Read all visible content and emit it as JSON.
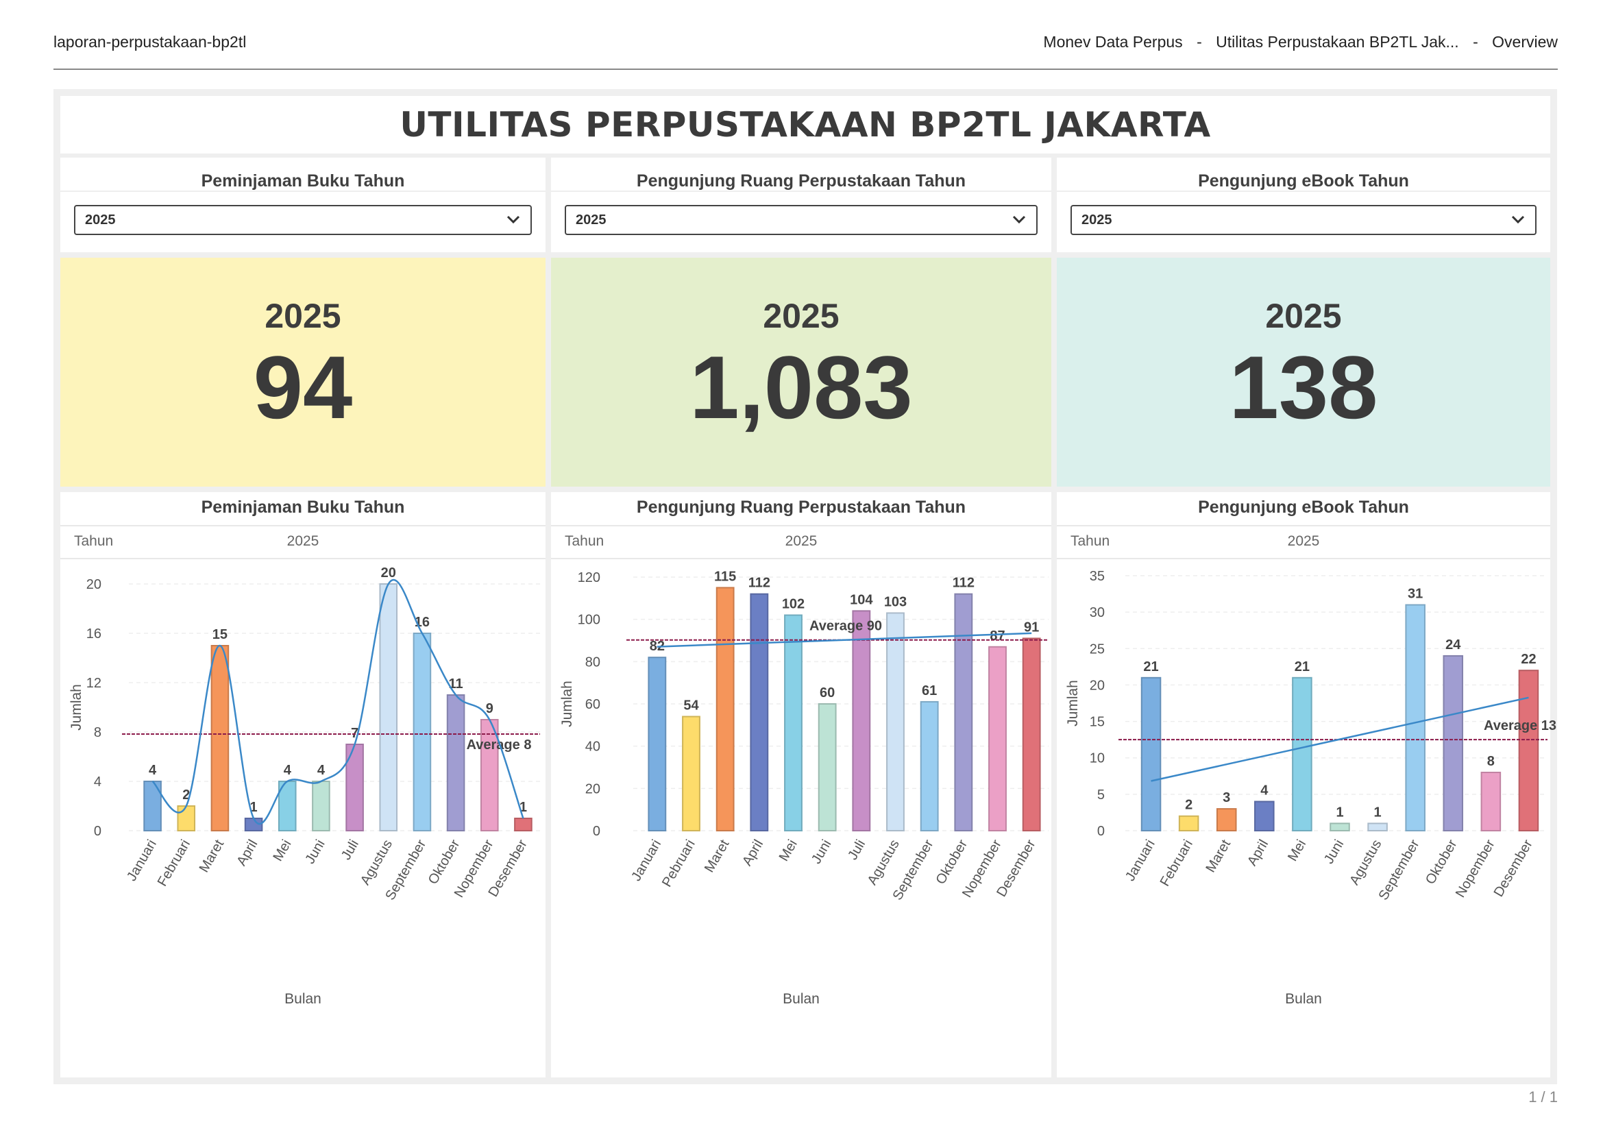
{
  "header": {
    "doc_name": "laporan-perpustakaan-bp2tl",
    "crumbs": [
      "Monev Data Perpus",
      "-",
      "Utilitas Perpustakaan BP2TL Jak...",
      "-",
      "Overview"
    ]
  },
  "title": "UTILITAS PERPUSTAKAAN BP2TL JAKARTA",
  "filters": [
    {
      "title": "Peminjaman Buku Tahun",
      "value": "2025"
    },
    {
      "title": "Pengunjung Ruang Perpustakaan Tahun",
      "value": "2025"
    },
    {
      "title": "Pengunjung eBook Tahun",
      "value": "2025"
    }
  ],
  "kpis": [
    {
      "year": "2025",
      "value": "94",
      "bg": "#fdf4bb"
    },
    {
      "year": "2025",
      "value": "1,083",
      "bg": "#e4efcc"
    },
    {
      "year": "2025",
      "value": "138",
      "bg": "#daf0ec"
    }
  ],
  "charts": [
    {
      "title": "Peminjaman Buku Tahun",
      "tahun_label": "Tahun",
      "tahun_value": "2025"
    },
    {
      "title": "Pengunjung Ruang Perpustakaan Tahun",
      "tahun_label": "Tahun",
      "tahun_value": "2025"
    },
    {
      "title": "Pengunjung eBook Tahun",
      "tahun_label": "Tahun",
      "tahun_value": "2025"
    }
  ],
  "chart_data": [
    {
      "type": "bar",
      "title": "Peminjaman Buku Tahun",
      "xlabel": "Bulan",
      "ylabel": "Jumlah",
      "categories": [
        "Januari",
        "Februari",
        "Maret",
        "April",
        "Mei",
        "Juni",
        "Juli",
        "Agustus",
        "September",
        "Oktober",
        "Nopember",
        "Desember"
      ],
      "values": [
        4,
        2,
        15,
        1,
        4,
        4,
        7,
        20,
        16,
        11,
        9,
        1
      ],
      "yticks": [
        0,
        4,
        8,
        12,
        16,
        20
      ],
      "ylim": [
        0,
        20
      ],
      "average": {
        "value": 7.83,
        "label": "Average 8"
      },
      "trend": "smooth",
      "grid": true
    },
    {
      "type": "bar",
      "title": "Pengunjung Ruang Perpustakaan Tahun",
      "xlabel": "Bulan",
      "ylabel": "Jumlah",
      "categories": [
        "Januari",
        "Pebruari",
        "Maret",
        "April",
        "Mei",
        "Juni",
        "Juli",
        "Agustus",
        "September",
        "Oktober",
        "Nopember",
        "Desember"
      ],
      "values": [
        82,
        54,
        115,
        112,
        102,
        60,
        104,
        103,
        61,
        112,
        87,
        91
      ],
      "yticks": [
        0,
        20,
        40,
        60,
        80,
        100,
        120
      ],
      "ylim": [
        0,
        120
      ],
      "average": {
        "value": 90.25,
        "label": "Average 90"
      },
      "trend": "linear",
      "grid": true
    },
    {
      "type": "bar",
      "title": "Pengunjung eBook Tahun",
      "xlabel": "Bulan",
      "ylabel": "Jumlah",
      "categories": [
        "Januari",
        "Februari",
        "Maret",
        "April",
        "Mei",
        "Juni",
        "Agustus",
        "September",
        "Oktober",
        "Nopember",
        "Desember"
      ],
      "values": [
        21,
        2,
        3,
        4,
        21,
        1,
        1,
        31,
        24,
        8,
        22
      ],
      "yticks": [
        0,
        5,
        10,
        15,
        20,
        25,
        30,
        35
      ],
      "ylim": [
        0,
        35
      ],
      "average": {
        "value": 12.5,
        "label": "Average 13"
      },
      "trend": "linear",
      "grid": true
    }
  ],
  "palette": {
    "Januari": "#7aaee0",
    "Februari": "#fddc6b",
    "Pebruari": "#fddc6b",
    "Maret": "#f5955a",
    "April": "#6b7fc4",
    "Mei": "#88d0e6",
    "Juni": "#bde3d5",
    "Juli": "#c78fc7",
    "Agustus": "#cfe3f5",
    "September": "#99cdf0",
    "Oktober": "#a09dd1",
    "Nopember": "#eba0c6",
    "Desember": "#e07178",
    "avg_line": "#8b1a4a",
    "trend_line": "#3a88c8"
  },
  "footer": {
    "page": "1 / 1"
  }
}
